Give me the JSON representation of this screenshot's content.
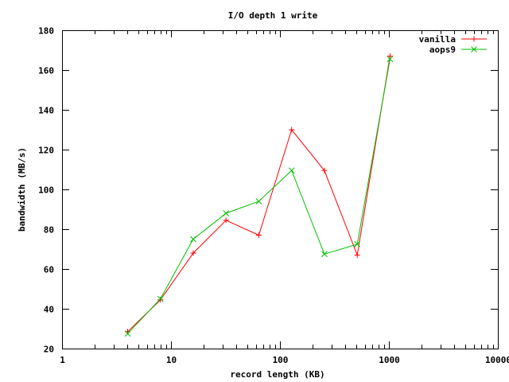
{
  "chart_data": {
    "type": "line",
    "title": "I/O depth 1 write",
    "xlabel": "record length (KB)",
    "ylabel": "bandwidth (MB/s)",
    "x_scale": "log",
    "xlim": [
      1,
      10000
    ],
    "ylim": [
      20,
      180
    ],
    "x_ticks": [
      1,
      10,
      100,
      1000,
      10000
    ],
    "x_tick_labels": [
      "1",
      "10",
      "100",
      "1000",
      "10000"
    ],
    "y_ticks": [
      20,
      40,
      60,
      80,
      100,
      120,
      140,
      160,
      180
    ],
    "y_tick_labels": [
      "20",
      "40",
      "60",
      "80",
      "100",
      "120",
      "140",
      "160",
      "180"
    ],
    "grid": false,
    "legend_position": "top-right",
    "series": [
      {
        "name": "vanilla",
        "color": "#ff0000",
        "marker": "plus",
        "x": [
          4,
          8,
          16,
          32,
          64,
          128,
          256,
          512,
          1024
        ],
        "y": [
          28.5,
          44.5,
          68,
          84.5,
          77,
          130,
          109.5,
          67,
          167
        ]
      },
      {
        "name": "aops9",
        "color": "#00c000",
        "marker": "cross",
        "x": [
          4,
          8,
          16,
          32,
          64,
          128,
          256,
          512,
          1024
        ],
        "y": [
          27.5,
          45,
          75,
          88,
          94,
          109.5,
          67.5,
          72.5,
          165.5
        ]
      }
    ]
  }
}
